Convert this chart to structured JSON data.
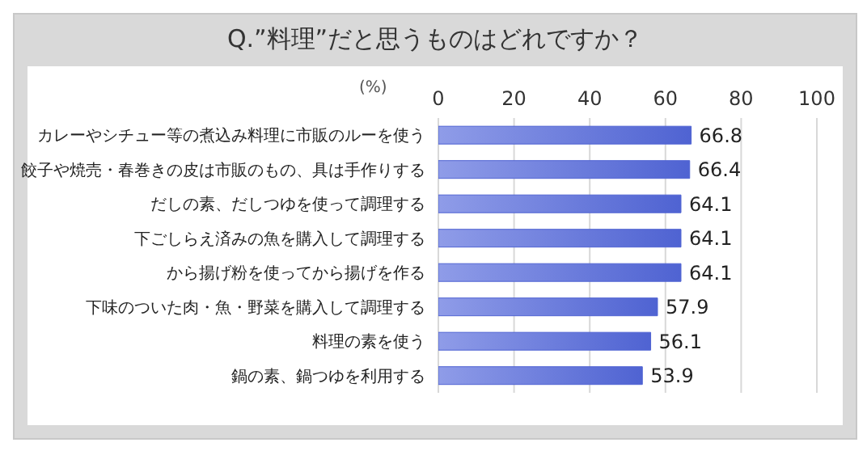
{
  "chart_data": {
    "type": "bar",
    "orientation": "horizontal",
    "title": "Q.”料理”だと思うものはどれですか？",
    "xlabel": "(%)",
    "categories": [
      "カレーやシチュー等の煮込み料理に市販のルーを使う",
      "餃子や焼売・春巻きの皮は市販のもの、具は手作りする",
      "だしの素、だしつゆを使って調理する",
      "下ごしらえ済みの魚を購入して調理する",
      "から揚げ粉を使ってから揚げを作る",
      "下味のついた肉・魚・野菜を購入して調理する",
      "料理の素を使う",
      "鍋の素、鍋つゆを利用する"
    ],
    "values": [
      66.8,
      66.4,
      64.1,
      64.1,
      64.1,
      57.9,
      56.1,
      53.9
    ],
    "color": "#4f63d2",
    "xlim": [
      0,
      100
    ],
    "xticks": [
      0,
      20,
      40,
      60,
      80,
      100
    ],
    "grid": "x",
    "data_labels": true
  }
}
